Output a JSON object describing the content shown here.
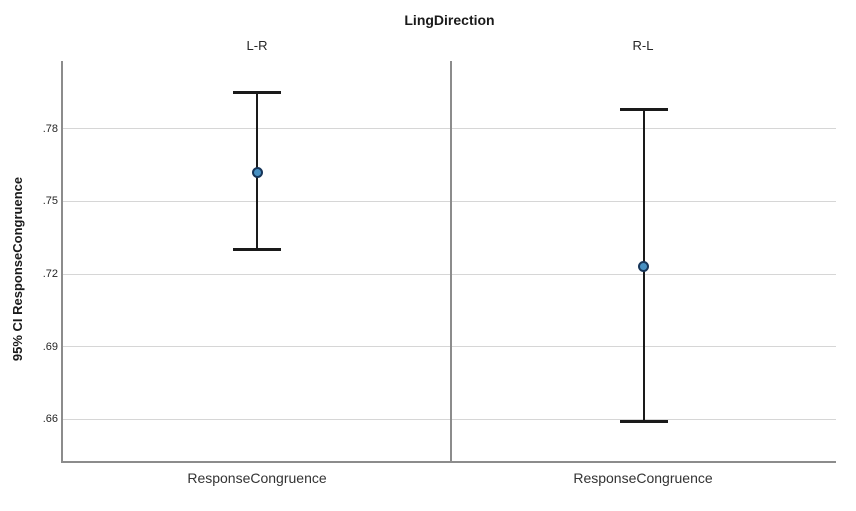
{
  "chart_data": {
    "type": "errorbar",
    "title": "LingDirection",
    "panel_variable": "LingDirection",
    "ylabel": "95% CI ResponseCongruence",
    "xlabel": "ResponseCongruence",
    "panels": [
      {
        "label": "L-R",
        "category": "ResponseCongruence",
        "mean": 0.762,
        "ci_low": 0.73,
        "ci_high": 0.795
      },
      {
        "label": "R-L",
        "category": "ResponseCongruence",
        "mean": 0.723,
        "ci_low": 0.659,
        "ci_high": 0.788
      }
    ],
    "yticks": [
      0.78,
      0.75,
      0.72,
      0.69,
      0.66
    ],
    "ytick_labels": [
      ".78",
      ".75",
      ".72",
      ".69",
      ".66"
    ],
    "ylim": [
      0.642,
      0.808
    ],
    "grid": "horizontal-only",
    "legend": "none",
    "colors": {
      "marker_fill": "#4790c2",
      "marker_stroke": "#17365a",
      "error_bar": "#1a1a1a",
      "axis_line": "#8c8c8c",
      "gridline": "#d6d6d6",
      "text": "#262626"
    }
  }
}
